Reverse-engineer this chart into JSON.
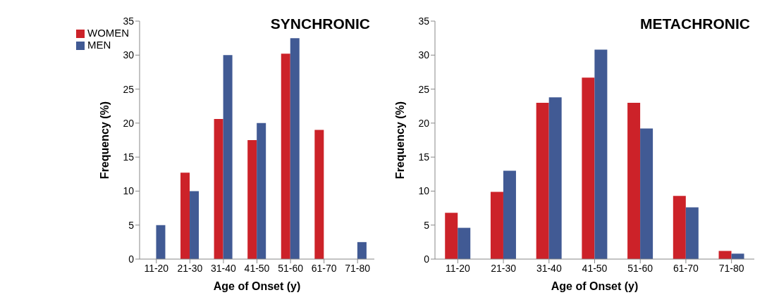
{
  "chart_data": [
    {
      "type": "bar",
      "title": "SYNCHRONIC",
      "xlabel": "Age of Onset (y)",
      "ylabel": "Frequency (%)",
      "categories": [
        "11-20",
        "21-30",
        "31-40",
        "41-50",
        "51-60",
        "61-70",
        "71-80"
      ],
      "series": [
        {
          "name": "WOMEN",
          "color": "#cc2229",
          "values": [
            0,
            12.7,
            20.6,
            17.5,
            30.2,
            19,
            0
          ]
        },
        {
          "name": "MEN",
          "color": "#415a94",
          "values": [
            5,
            10,
            30,
            20,
            32.5,
            0,
            2.5
          ]
        }
      ],
      "ylim": [
        0,
        35
      ],
      "yticks": [
        0,
        5,
        10,
        15,
        20,
        25,
        30,
        35
      ],
      "legend": "top left"
    },
    {
      "type": "bar",
      "title": "METACHRONIC",
      "xlabel": "Age of Onset (y)",
      "ylabel": "Frequency (%)",
      "categories": [
        "11-20",
        "21-30",
        "31-40",
        "41-50",
        "51-60",
        "61-70",
        "71-80"
      ],
      "series": [
        {
          "color": "#cc2229",
          "values": [
            6.8,
            9.9,
            23,
            26.7,
            23,
            9.3,
            1.2
          ]
        },
        {
          "color": "#415a94",
          "values": [
            4.6,
            13,
            23.8,
            30.8,
            19.2,
            7.6,
            0.8
          ]
        }
      ],
      "ylim": [
        0,
        35
      ],
      "yticks": [
        0,
        5,
        10,
        15,
        20,
        25,
        30,
        35
      ]
    }
  ]
}
